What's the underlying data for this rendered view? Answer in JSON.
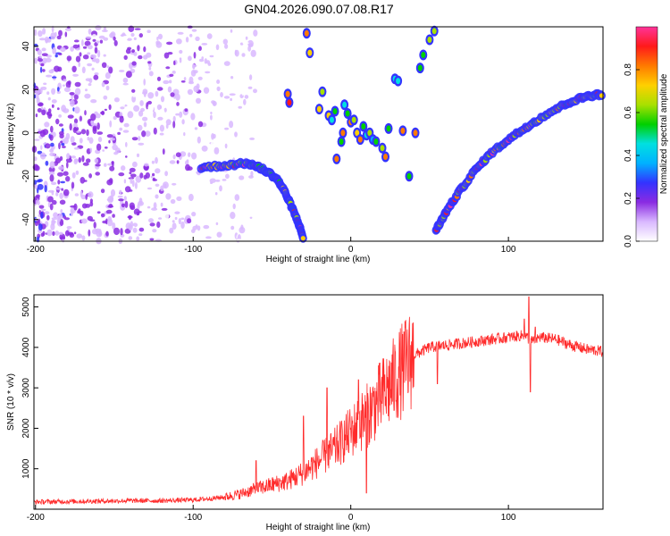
{
  "title": "GN04.2026.090.07.08.R17",
  "chart_data": [
    {
      "type": "heatmap",
      "xlabel": "Height of straight line (km)",
      "ylabel": "Frequency (Hz)",
      "xlim": [
        -201,
        160
      ],
      "ylim": [
        -50,
        49
      ],
      "x_ticks": [
        -200,
        -100,
        0,
        100
      ],
      "y_ticks": [
        -40,
        -20,
        0,
        20,
        40
      ],
      "colorbar": {
        "label": "Normalized spectral amplitude",
        "range": [
          0,
          1
        ],
        "ticks": [
          "0.0",
          "0.2",
          "0.4",
          "0.6",
          "0.8"
        ],
        "colors": [
          "#ffffff",
          "#d9b8ff",
          "#8a2be2",
          "#3333ff",
          "#00b2ff",
          "#00e0e0",
          "#00d000",
          "#a8e000",
          "#ffd000",
          "#ff7a00",
          "#ff1a1a",
          "#ff3399"
        ]
      },
      "noise_region": {
        "x_from": -201,
        "x_to": -60,
        "level": 0.12
      },
      "ridges": [
        {
          "name": "",
          "points": [
            [
              -95,
              -16
            ],
            [
              -80,
              -15
            ],
            [
              -65,
              -14
            ],
            [
              -55,
              -17
            ],
            [
              -47,
              -21
            ],
            [
              -42,
              -27
            ],
            [
              -37,
              -35
            ],
            [
              -33,
              -42
            ],
            [
              -30,
              -49
            ]
          ],
          "level": 0.5
        },
        {
          "name": "",
          "points": [
            [
              54,
              -45
            ],
            [
              60,
              -37
            ],
            [
              68,
              -28
            ],
            [
              78,
              -18
            ],
            [
              88,
              -10
            ],
            [
              100,
              -3
            ],
            [
              112,
              3
            ],
            [
              125,
              9
            ],
            [
              138,
              14
            ],
            [
              150,
              17
            ],
            [
              160,
              18
            ]
          ],
          "level": 0.55
        }
      ],
      "blobs": [
        [
          -28,
          46
        ],
        [
          -26,
          37
        ],
        [
          -39,
          14
        ],
        [
          -40,
          18
        ],
        [
          -20,
          11
        ],
        [
          -18,
          19
        ],
        [
          -14,
          8
        ],
        [
          -12,
          6
        ],
        [
          -10,
          10
        ],
        [
          -6,
          -4
        ],
        [
          -4,
          13
        ],
        [
          -2,
          9
        ],
        [
          0,
          5
        ],
        [
          2,
          6
        ],
        [
          4,
          0
        ],
        [
          6,
          -3
        ],
        [
          8,
          3
        ],
        [
          10,
          -1
        ],
        [
          12,
          0
        ],
        [
          14,
          -3
        ],
        [
          16,
          -4
        ],
        [
          20,
          -7
        ],
        [
          22,
          -11
        ],
        [
          24,
          2
        ],
        [
          28,
          25
        ],
        [
          30,
          24
        ],
        [
          33,
          1
        ],
        [
          37,
          -20
        ],
        [
          41,
          0
        ],
        [
          44,
          30
        ],
        [
          46,
          36
        ],
        [
          50,
          43
        ],
        [
          53,
          47
        ],
        [
          -5,
          0
        ],
        [
          -9,
          -12
        ]
      ]
    },
    {
      "type": "line",
      "xlabel": "Height of straight line (km)",
      "ylabel": "SNR (10 * v/v)",
      "xlim": [
        -201,
        160
      ],
      "ylim": [
        0,
        5300
      ],
      "x_ticks": [
        -200,
        -100,
        0,
        100
      ],
      "y_ticks": [
        1000,
        2000,
        3000,
        4000,
        5000
      ],
      "series": [
        {
          "name": "",
          "color": "#ff2b2b",
          "x": [
            -201,
            -180,
            -160,
            -140,
            -120,
            -100,
            -90,
            -80,
            -70,
            -60,
            -50,
            -40,
            -30,
            -20,
            -10,
            0,
            10,
            20,
            30,
            40,
            50,
            60,
            70,
            80,
            90,
            100,
            110,
            115,
            120,
            130,
            140,
            150,
            160
          ],
          "y": [
            180,
            190,
            200,
            210,
            210,
            230,
            260,
            300,
            380,
            500,
            600,
            700,
            900,
            1200,
            1500,
            1900,
            2300,
            2800,
            3300,
            3800,
            4000,
            4050,
            4100,
            4150,
            4200,
            4250,
            4300,
            4150,
            4250,
            4200,
            4050,
            3950,
            3900
          ],
          "spikes": [
            [
              -60,
              1200
            ],
            [
              -30,
              2300
            ],
            [
              -15,
              3000
            ],
            [
              -5,
              1500
            ],
            [
              5,
              3200
            ],
            [
              10,
              400
            ],
            [
              55,
              3100
            ],
            [
              110,
              4700
            ],
            [
              113,
              5250
            ],
            [
              114,
              2900
            ],
            [
              117,
              4500
            ]
          ]
        }
      ]
    }
  ]
}
